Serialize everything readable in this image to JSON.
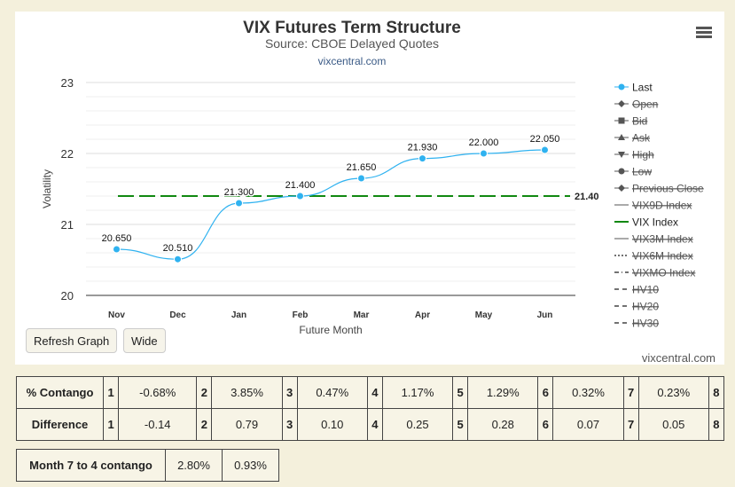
{
  "chart": {
    "title": "VIX Futures Term Structure",
    "subtitle": "Source: CBOE Delayed Quotes",
    "link": "vixcentral.com",
    "watermark": "vixcentral.com",
    "buttons": {
      "refresh": "Refresh Graph",
      "wide": "Wide"
    }
  },
  "chart_data": {
    "type": "line",
    "xlabel": "Future Month",
    "ylabel": "Volatility",
    "ylim": [
      20,
      23
    ],
    "yticks": [
      20,
      21,
      22,
      23
    ],
    "categories": [
      "Nov",
      "Dec",
      "Jan",
      "Feb",
      "Mar",
      "Apr",
      "May",
      "Jun"
    ],
    "series": [
      {
        "name": "Last",
        "values": [
          20.65,
          20.51,
          21.3,
          21.4,
          21.65,
          21.93,
          22.0,
          22.05
        ],
        "labels": [
          "20.650",
          "20.510",
          "21.300",
          "21.400",
          "21.650",
          "21.930",
          "22.000",
          "22.050"
        ],
        "color": "#2fb2f0"
      }
    ],
    "reference_line": {
      "name": "VIX Index",
      "value": 21.4,
      "label": "21.40",
      "color": "#118811"
    },
    "legend": [
      {
        "label": "Last",
        "symbol": "circle",
        "active": true
      },
      {
        "label": "Open",
        "symbol": "diamond",
        "active": false
      },
      {
        "label": "Bid",
        "symbol": "square",
        "active": false
      },
      {
        "label": "Ask",
        "symbol": "triangle",
        "active": false
      },
      {
        "label": "High",
        "symbol": "triangle-down",
        "active": false
      },
      {
        "label": "Low",
        "symbol": "circle",
        "active": false
      },
      {
        "label": "Previous Close",
        "symbol": "diamond",
        "active": false
      },
      {
        "label": "VIX9D Index",
        "symbol": "line",
        "active": false
      },
      {
        "label": "VIX Index",
        "symbol": "line-green",
        "active": true
      },
      {
        "label": "VIX3M Index",
        "symbol": "line",
        "active": false
      },
      {
        "label": "VIX6M Index",
        "symbol": "dotted",
        "active": false
      },
      {
        "label": "VIXMO Index",
        "symbol": "dashdot",
        "active": false
      },
      {
        "label": "HV10",
        "symbol": "dash",
        "active": false
      },
      {
        "label": "HV20",
        "symbol": "dash",
        "active": false
      },
      {
        "label": "HV30",
        "symbol": "dash",
        "active": false
      }
    ],
    "legend_position": "right"
  },
  "contango_table": {
    "rows": [
      {
        "label": "% Contango",
        "cells": [
          [
            "1",
            "-0.68%"
          ],
          [
            "2",
            "3.85%"
          ],
          [
            "3",
            "0.47%"
          ],
          [
            "4",
            "1.17%"
          ],
          [
            "5",
            "1.29%"
          ],
          [
            "6",
            "0.32%"
          ],
          [
            "7",
            "0.23%"
          ],
          [
            "8",
            ""
          ]
        ]
      },
      {
        "label": "Difference",
        "cells": [
          [
            "1",
            "-0.14"
          ],
          [
            "2",
            "0.79"
          ],
          [
            "3",
            "0.10"
          ],
          [
            "4",
            "0.25"
          ],
          [
            "5",
            "0.28"
          ],
          [
            "6",
            "0.07"
          ],
          [
            "7",
            "0.05"
          ],
          [
            "8",
            ""
          ]
        ]
      }
    ]
  },
  "month_table": {
    "label": "Month 7 to 4 contango",
    "values": [
      "2.80%",
      "0.93%"
    ]
  }
}
